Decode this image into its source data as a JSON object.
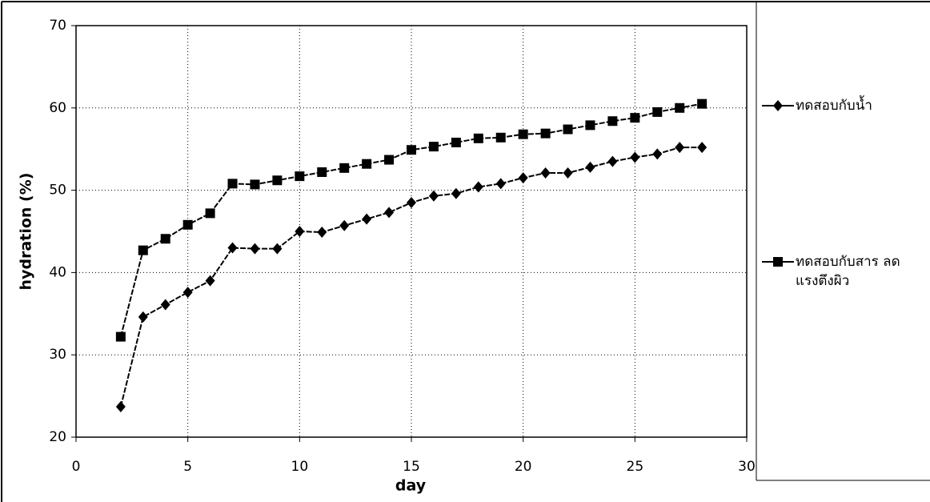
{
  "chart_data": {
    "type": "line",
    "xlabel": "day",
    "ylabel": "hydration (%)",
    "xlim": [
      0,
      30
    ],
    "xticks": [
      0,
      5,
      10,
      15,
      20,
      25,
      30
    ],
    "ylim": [
      20,
      70
    ],
    "yticks": [
      20,
      30,
      40,
      50,
      60,
      70
    ],
    "grid": true,
    "x": [
      2,
      3,
      4,
      5,
      6,
      7,
      8,
      9,
      10,
      11,
      12,
      13,
      14,
      15,
      16,
      17,
      18,
      19,
      20,
      21,
      22,
      23,
      24,
      25,
      26,
      27,
      28
    ],
    "series": [
      {
        "name": "ทดสอบกับน้ำ",
        "color": "#000000",
        "marker": "diamond",
        "values": [
          23.7,
          34.6,
          36.1,
          37.6,
          39.0,
          43.0,
          42.9,
          42.9,
          45.0,
          44.9,
          45.7,
          46.5,
          47.3,
          48.5,
          49.3,
          49.6,
          50.4,
          50.8,
          51.5,
          52.1,
          52.1,
          52.8,
          53.5,
          54.0,
          54.4,
          55.2,
          55.2
        ]
      },
      {
        "name": "ทดสอบกับสาร ลดแรงตึงผิว",
        "color": "#000000",
        "marker": "square",
        "values": [
          32.2,
          42.7,
          44.1,
          45.8,
          47.2,
          50.8,
          50.7,
          51.2,
          51.7,
          52.2,
          52.7,
          53.2,
          53.7,
          54.9,
          55.3,
          55.8,
          56.3,
          56.4,
          56.8,
          56.9,
          57.4,
          57.9,
          58.4,
          58.8,
          59.5,
          60.0,
          60.5
        ]
      }
    ],
    "legend": "right"
  }
}
